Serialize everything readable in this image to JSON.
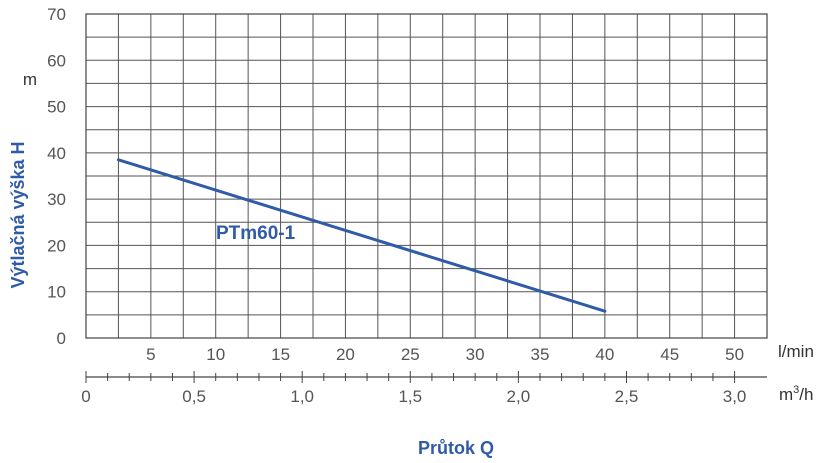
{
  "chart_data": {
    "type": "line",
    "title": "",
    "xlabel": "Průtok Q",
    "ylabel": "Výtlačná výška H",
    "y_unit": "m",
    "x_unit": "l/min",
    "x2_unit_base": "m",
    "x2_unit_sup": "3",
    "x2_unit_tail": "/h",
    "ylim": [
      0,
      70
    ],
    "xlim": [
      0,
      52.5
    ],
    "grid": true,
    "y_ticks": [
      "0",
      "10",
      "20",
      "30",
      "40",
      "50",
      "60",
      "70"
    ],
    "x_ticks": [
      "5",
      "10",
      "15",
      "20",
      "25",
      "30",
      "35",
      "40",
      "45",
      "50"
    ],
    "x2_ticks": [
      "0",
      "0,5",
      "1,0",
      "1,5",
      "2,0",
      "2,5",
      "3,0"
    ],
    "series": [
      {
        "name": "PTm60-1",
        "color": "#2f5ba7",
        "x": [
          2.5,
          40
        ],
        "y": [
          38.5,
          5.8
        ]
      }
    ]
  }
}
